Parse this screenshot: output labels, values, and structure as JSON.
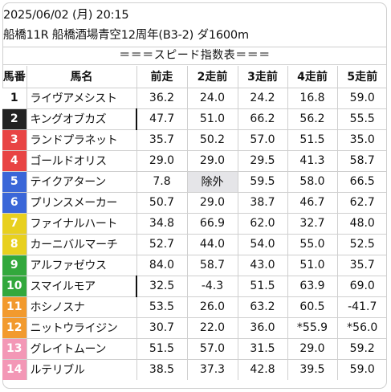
{
  "header": {
    "datetime": "2025/06/02 (月) 20:15",
    "race": "船橋11R 船橋酒場青空12周年(B3-2) ダ1600m"
  },
  "banner": "＝＝＝スピード指数表＝＝＝",
  "columns": [
    "馬番",
    "馬名",
    "前走",
    "2走前",
    "3走前",
    "4走前",
    "5走前"
  ],
  "colors": {
    "frame1": "#ffffff",
    "frame2": "#222222",
    "frame3": "#e84444",
    "frame4": "#3a66d8",
    "frame5": "#e8d01e",
    "frame6": "#32a83c",
    "frame7": "#f29a2e",
    "frame8": "#f397b6",
    "border": "#cfcfcf",
    "excluded_bg": "#e5e5e8"
  },
  "rows": [
    {
      "no": "1",
      "name": "ライヴアメシスト",
      "frame": "frame1",
      "mark": false,
      "s1": "36.2",
      "s2": "24.0",
      "s3": "24.2",
      "s4": "16.8",
      "s5": "59.0"
    },
    {
      "no": "2",
      "name": "キングオブカズ",
      "frame": "frame2",
      "mark": true,
      "s1": "47.7",
      "s2": "51.0",
      "s3": "66.2",
      "s4": "56.2",
      "s5": "55.5"
    },
    {
      "no": "3",
      "name": "ランドプラネット",
      "frame": "frame3",
      "mark": false,
      "s1": "35.7",
      "s2": "50.2",
      "s3": "57.0",
      "s4": "51.5",
      "s5": "35.0"
    },
    {
      "no": "4",
      "name": "ゴールドオリス",
      "frame": "frame3",
      "mark": false,
      "s1": "29.0",
      "s2": "29.0",
      "s3": "29.5",
      "s4": "41.3",
      "s5": "58.7"
    },
    {
      "no": "5",
      "name": "テイクアターン",
      "frame": "frame4",
      "mark": false,
      "s1": "7.8",
      "s2": "除外",
      "s3": "59.5",
      "s4": "58.0",
      "s5": "66.5",
      "excluded": "s2"
    },
    {
      "no": "6",
      "name": "プリンスメーカー",
      "frame": "frame4",
      "mark": false,
      "s1": "50.7",
      "s2": "29.0",
      "s3": "38.7",
      "s4": "46.7",
      "s5": "62.7"
    },
    {
      "no": "7",
      "name": "ファイナルハート",
      "frame": "frame5",
      "mark": false,
      "s1": "34.8",
      "s2": "66.9",
      "s3": "62.0",
      "s4": "32.7",
      "s5": "48.0"
    },
    {
      "no": "8",
      "name": "カーニバルマーチ",
      "frame": "frame5",
      "mark": false,
      "s1": "52.7",
      "s2": "44.0",
      "s3": "54.0",
      "s4": "55.0",
      "s5": "52.5"
    },
    {
      "no": "9",
      "name": "アルファゼウス",
      "frame": "frame6",
      "mark": false,
      "s1": "84.0",
      "s2": "58.7",
      "s3": "43.0",
      "s4": "51.0",
      "s5": "35.7"
    },
    {
      "no": "10",
      "name": "スマイルモア",
      "frame": "frame6",
      "mark": true,
      "s1": "32.5",
      "s2": "-4.3",
      "s3": "51.5",
      "s4": "63.9",
      "s5": "69.0"
    },
    {
      "no": "11",
      "name": "ホシノスナ",
      "frame": "frame7",
      "mark": false,
      "s1": "53.5",
      "s2": "26.0",
      "s3": "63.2",
      "s4": "60.5",
      "s5": "-41.7"
    },
    {
      "no": "12",
      "name": "ニットウライジン",
      "frame": "frame7",
      "mark": false,
      "s1": "30.7",
      "s2": "22.0",
      "s3": "36.0",
      "s4": "*55.9",
      "s5": "*56.0"
    },
    {
      "no": "13",
      "name": "グレイトムーン",
      "frame": "frame8",
      "mark": false,
      "s1": "51.5",
      "s2": "57.0",
      "s3": "31.5",
      "s4": "29.0",
      "s5": "59.2"
    },
    {
      "no": "14",
      "name": "ルテリブル",
      "frame": "frame8",
      "mark": false,
      "s1": "38.5",
      "s2": "37.3",
      "s3": "42.8",
      "s4": "39.5",
      "s5": "59.0"
    }
  ]
}
